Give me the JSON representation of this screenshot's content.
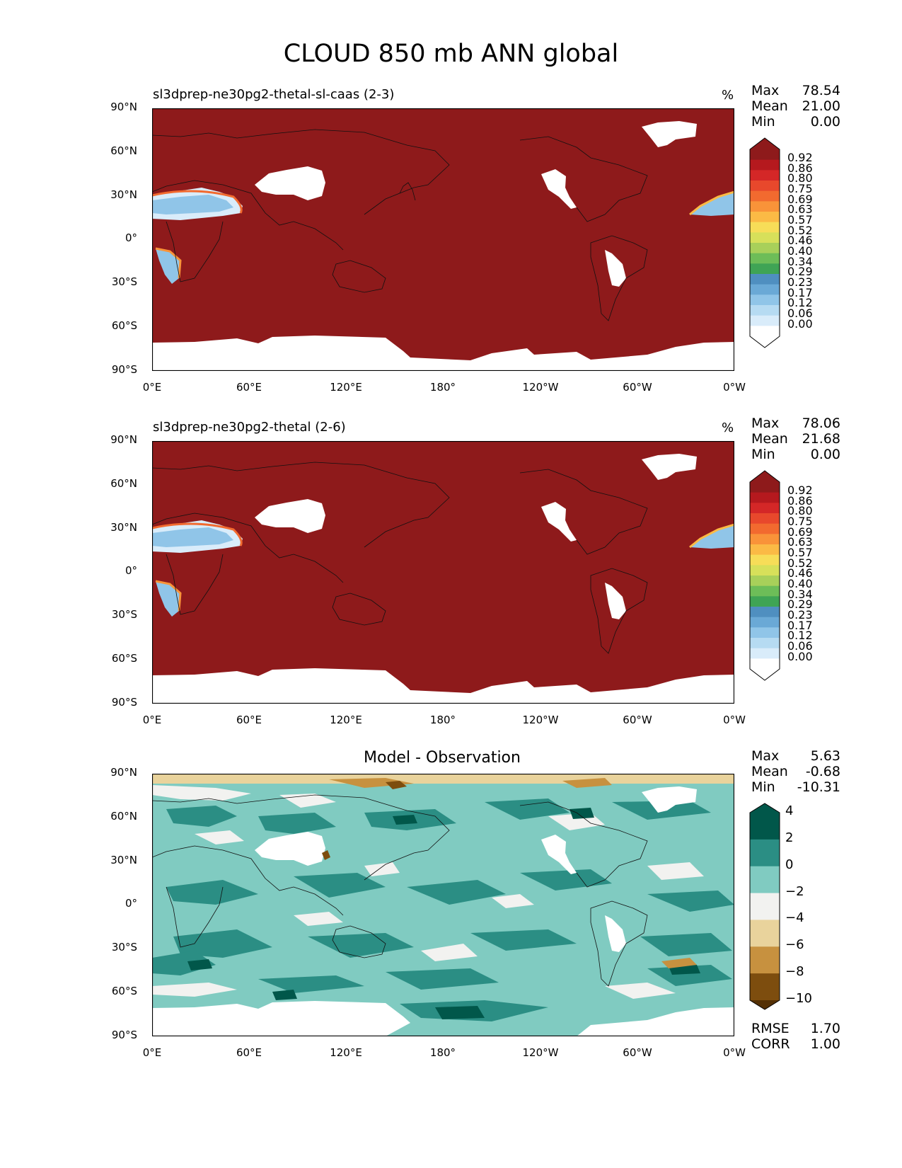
{
  "figure": {
    "title": "CLOUD 850 mb ANN global"
  },
  "axes": {
    "lat_ticks": [
      "90°N",
      "60°N",
      "30°N",
      "0°",
      "30°S",
      "60°S",
      "90°S"
    ],
    "lon_ticks": [
      "0°E",
      "60°E",
      "120°E",
      "180°",
      "120°W",
      "60°W",
      "0°W"
    ]
  },
  "panels": [
    {
      "title": "sl3dprep-ne30pg2-thetal-sl-caas (2-3)",
      "units": "%",
      "stats": {
        "max_label": "Max",
        "max": "78.54",
        "mean_label": "Mean",
        "mean": "21.00",
        "min_label": "Min",
        "min": "0.00"
      }
    },
    {
      "title": "sl3dprep-ne30pg2-thetal (2-6)",
      "units": "%",
      "stats": {
        "max_label": "Max",
        "max": "78.06",
        "mean_label": "Mean",
        "mean": "21.68",
        "min_label": "Min",
        "min": "0.00"
      }
    },
    {
      "title": "Model - Observation",
      "stats": {
        "max_label": "Max",
        "max": "5.63",
        "mean_label": "Mean",
        "mean": "-0.68",
        "min_label": "Min",
        "min": "-10.31"
      },
      "metrics": {
        "rmse_label": "RMSE",
        "rmse": "1.70",
        "corr_label": "CORR",
        "corr": "1.00"
      }
    }
  ],
  "colorbars": {
    "model_levels": [
      "0.92",
      "0.86",
      "0.80",
      "0.75",
      "0.69",
      "0.63",
      "0.57",
      "0.52",
      "0.46",
      "0.40",
      "0.34",
      "0.29",
      "0.23",
      "0.17",
      "0.12",
      "0.06",
      "0.00"
    ],
    "model_colors": [
      "#8e1a1b",
      "#b5191e",
      "#d42727",
      "#e8482c",
      "#f26a2f",
      "#f99339",
      "#fbba45",
      "#f7dd58",
      "#d7e05a",
      "#a8d05a",
      "#6dbd58",
      "#3fa455",
      "#4f8fc0",
      "#6aa9d6",
      "#90c5e8",
      "#b6dbf2",
      "#d9ecfa",
      "#ffffff"
    ],
    "diff_levels": [
      "4",
      "2",
      "0",
      "−2",
      "−4",
      "−6",
      "−8",
      "−10"
    ],
    "diff_colors": [
      "#01574a",
      "#2b8e84",
      "#80cbc1",
      "#f2f2f0",
      "#e9d39c",
      "#c7913f",
      "#7d4d0e",
      "#543005"
    ]
  },
  "chart_data": [
    {
      "type": "heatmap",
      "title": "sl3dprep-ne30pg2-thetal-sl-caas (2-3)",
      "units": "%",
      "xlabel": "",
      "ylabel": "",
      "x_ticks": [
        "0°E",
        "60°E",
        "120°E",
        "180°",
        "120°W",
        "60°W",
        "0°W"
      ],
      "y_ticks": [
        "90°N",
        "60°N",
        "30°N",
        "0°",
        "30°S",
        "60°S",
        "90°S"
      ],
      "xlim": [
        0,
        360
      ],
      "ylim": [
        -90,
        90
      ],
      "stats": {
        "max": 78.54,
        "mean": 21.0,
        "min": 0.0
      },
      "colorbar_levels": [
        0.0,
        0.06,
        0.12,
        0.17,
        0.23,
        0.29,
        0.34,
        0.4,
        0.46,
        0.52,
        0.57,
        0.63,
        0.69,
        0.75,
        0.8,
        0.86,
        0.92
      ]
    },
    {
      "type": "heatmap",
      "title": "sl3dprep-ne30pg2-thetal (2-6)",
      "units": "%",
      "xlabel": "",
      "ylabel": "",
      "x_ticks": [
        "0°E",
        "60°E",
        "120°E",
        "180°",
        "120°W",
        "60°W",
        "0°W"
      ],
      "y_ticks": [
        "90°N",
        "60°N",
        "30°N",
        "0°",
        "30°S",
        "60°S",
        "90°S"
      ],
      "xlim": [
        0,
        360
      ],
      "ylim": [
        -90,
        90
      ],
      "stats": {
        "max": 78.06,
        "mean": 21.68,
        "min": 0.0
      },
      "colorbar_levels": [
        0.0,
        0.06,
        0.12,
        0.17,
        0.23,
        0.29,
        0.34,
        0.4,
        0.46,
        0.52,
        0.57,
        0.63,
        0.69,
        0.75,
        0.8,
        0.86,
        0.92
      ]
    },
    {
      "type": "heatmap",
      "title": "Model - Observation",
      "xlabel": "",
      "ylabel": "",
      "x_ticks": [
        "0°E",
        "60°E",
        "120°E",
        "180°",
        "120°W",
        "60°W",
        "0°W"
      ],
      "y_ticks": [
        "90°N",
        "60°N",
        "30°N",
        "0°",
        "30°S",
        "60°S",
        "90°S"
      ],
      "xlim": [
        0,
        360
      ],
      "ylim": [
        -90,
        90
      ],
      "stats": {
        "max": 5.63,
        "mean": -0.68,
        "min": -10.31
      },
      "rmse": 1.7,
      "corr": 1.0,
      "colorbar_levels": [
        -10,
        -8,
        -6,
        -4,
        -2,
        0,
        2,
        4
      ]
    }
  ]
}
